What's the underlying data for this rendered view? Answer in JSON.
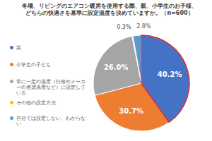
{
  "chart_data": {
    "type": "pie",
    "title": "冬場、リビングのエアコン暖房を使用する際、親、小学生のお子様、どちらの快適さを基準に設定温度を決めていますか。（n=600）",
    "categories": [
      "親",
      "小学生の子ども",
      "常に一定の温度（行政やメーカーの推奨温度など）に設定している",
      "その他の設定方法",
      "自分では設定しない、わからない"
    ],
    "values": [
      40.2,
      30.7,
      26.0,
      0.3,
      2.8
    ],
    "value_labels": [
      "40.2%",
      "30.7%",
      "26.0%",
      "0.3%",
      "2.8%"
    ],
    "colors": [
      "#4472c4",
      "#ed7d31",
      "#a5a5a5",
      "#ffc000",
      "#5b9bd5"
    ],
    "legend": "left",
    "data_labels": true
  }
}
